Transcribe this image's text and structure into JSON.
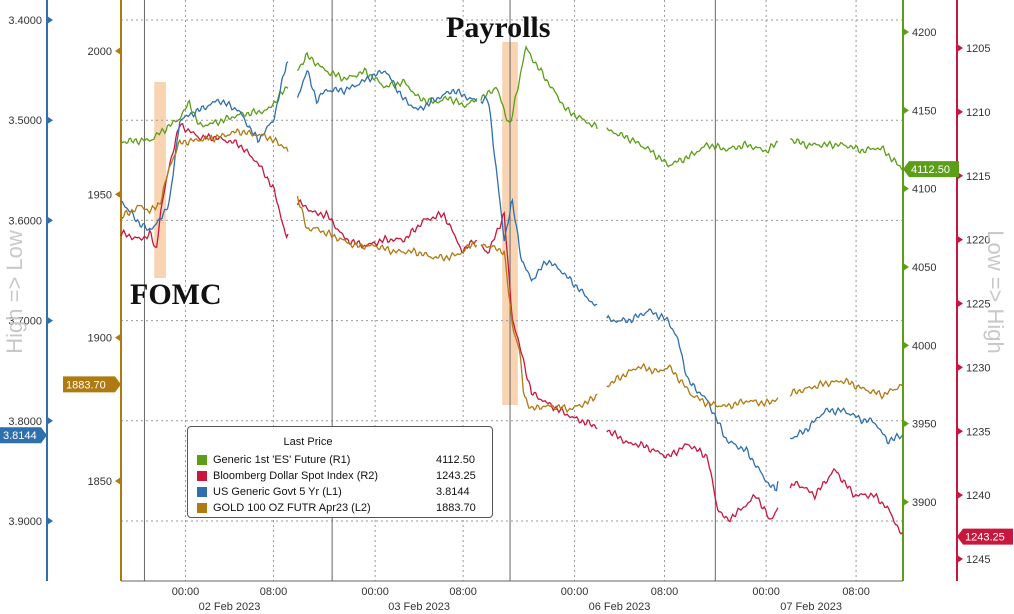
{
  "chart_data": {
    "type": "line",
    "annotations": [
      "FOMC",
      "Payrolls"
    ],
    "left_axis_title": "High => Low",
    "right_axis_title": "Low => High",
    "x_ticks": [
      {
        "day": "02 Feb 2023",
        "times": [
          "00:00",
          "08:00"
        ]
      },
      {
        "day": "03 Feb 2023",
        "times": [
          "00:00",
          "08:00"
        ]
      },
      {
        "day": "06 Feb 2023",
        "times": [
          "00:00",
          "08:00"
        ]
      },
      {
        "day": "07 Feb 2023",
        "times": [
          "00:00",
          "08:00"
        ]
      }
    ],
    "axes": {
      "L1": {
        "ticks": [
          "3.4000",
          "3.5000",
          "3.6000",
          "3.7000",
          "3.8000",
          "3.9000"
        ],
        "range": [
          3.4,
          3.9
        ],
        "inverted": true,
        "color": "#2f6fae"
      },
      "L2": {
        "ticks": [
          "2000",
          "1950",
          "1900",
          "1850"
        ],
        "range": [
          1850,
          2000
        ],
        "color": "#b07a12"
      },
      "R1": {
        "ticks": [
          "4200",
          "4150",
          "4100",
          "4050",
          "4000",
          "3950",
          "3900"
        ],
        "range": [
          3900,
          4200
        ],
        "color": "#5c9e17"
      },
      "R2": {
        "ticks": [
          "1205",
          "1210",
          "1215",
          "1220",
          "1225",
          "1230",
          "1235",
          "1240",
          "1245"
        ],
        "range": [
          1205,
          1245
        ],
        "inverted": true,
        "color": "#c8173d"
      }
    },
    "legend": {
      "header": "Last Price",
      "items": [
        {
          "label": "Generic 1st 'ES' Future  (R1)",
          "value": "4112.50",
          "color": "#5c9e17"
        },
        {
          "label": "Bloomberg Dollar Spot Index  (R2)",
          "value": "1243.25",
          "color": "#c8173d"
        },
        {
          "label": "US Generic Govt 5 Yr  (L1)",
          "value": "3.8144",
          "color": "#2f6fae"
        },
        {
          "label": "GOLD 100 OZ FUTR Apr23  (L2)",
          "value": "1883.70",
          "color": "#b07a12"
        }
      ]
    },
    "last_value_tags": {
      "es": {
        "text": "4112.50",
        "value": 4112.5,
        "axis": "R1",
        "color": "#5c9e17"
      },
      "dxy": {
        "text": "1243.25",
        "value": 1243.25,
        "axis": "R2",
        "color": "#c8173d"
      },
      "yield": {
        "text": "3.8144",
        "value": 3.8144,
        "axis": "L1",
        "color": "#2f6fae"
      },
      "gold": {
        "text": "1883.70",
        "value": 1883.7,
        "axis": "L2",
        "color": "#b07a12"
      }
    },
    "series": [
      {
        "key": "es",
        "name": "Generic 1st 'ES' Future  (R1)",
        "axis": "R1",
        "color": "#5c9e17",
        "points": [
          [
            0,
            4130
          ],
          [
            15,
            4131
          ],
          [
            30,
            4145
          ],
          [
            35,
            4155
          ],
          [
            40,
            4140
          ],
          [
            48,
            4142
          ],
          [
            60,
            4147
          ],
          [
            75,
            4150
          ],
          [
            85,
            4165
          ],
          [
            95,
            4185
          ],
          [
            105,
            4175
          ],
          [
            115,
            4170
          ],
          [
            125,
            4175
          ],
          [
            135,
            4165
          ],
          [
            145,
            4168
          ],
          [
            152,
            4158
          ],
          [
            160,
            4155
          ],
          [
            168,
            4158
          ],
          [
            175,
            4153
          ],
          [
            185,
            4158
          ],
          [
            192,
            4165
          ],
          [
            196,
            4150
          ],
          [
            199,
            4140
          ],
          [
            203,
            4165
          ],
          [
            207,
            4190
          ],
          [
            212,
            4180
          ],
          [
            220,
            4165
          ],
          [
            228,
            4150
          ],
          [
            242,
            4140
          ],
          [
            250,
            4137
          ],
          [
            260,
            4132
          ],
          [
            270,
            4125
          ],
          [
            280,
            4115
          ],
          [
            290,
            4120
          ],
          [
            300,
            4128
          ],
          [
            310,
            4125
          ],
          [
            320,
            4128
          ],
          [
            330,
            4124
          ],
          [
            340,
            4133
          ],
          [
            350,
            4128
          ],
          [
            360,
            4128
          ],
          [
            370,
            4128
          ],
          [
            380,
            4124
          ],
          [
            385,
            4126
          ],
          [
            390,
            4125
          ],
          [
            395,
            4118
          ],
          [
            400,
            4112.5
          ]
        ]
      },
      {
        "key": "dxy",
        "name": "Bloomberg Dollar Spot Index  (R2)",
        "axis": "R2",
        "color": "#c8173d",
        "points": [
          [
            0,
            1219.5
          ],
          [
            10,
            1220
          ],
          [
            15,
            1219.5
          ],
          [
            18,
            1221
          ],
          [
            20,
            1218
          ],
          [
            25,
            1214
          ],
          [
            30,
            1211
          ],
          [
            40,
            1212
          ],
          [
            48,
            1212
          ],
          [
            60,
            1212.5
          ],
          [
            70,
            1214
          ],
          [
            78,
            1216
          ],
          [
            85,
            1220
          ],
          [
            90,
            1217
          ],
          [
            100,
            1218
          ],
          [
            105,
            1218
          ],
          [
            115,
            1220
          ],
          [
            125,
            1220.5
          ],
          [
            135,
            1220
          ],
          [
            145,
            1220
          ],
          [
            155,
            1218.5
          ],
          [
            165,
            1218
          ],
          [
            175,
            1221
          ],
          [
            180,
            1220
          ],
          [
            188,
            1221
          ],
          [
            196,
            1218
          ],
          [
            200,
            1226
          ],
          [
            205,
            1229
          ],
          [
            210,
            1232
          ],
          [
            220,
            1233
          ],
          [
            232,
            1234
          ],
          [
            250,
            1235
          ],
          [
            260,
            1236
          ],
          [
            265,
            1236
          ],
          [
            280,
            1237
          ],
          [
            290,
            1236
          ],
          [
            300,
            1237
          ],
          [
            305,
            1241
          ],
          [
            310,
            1242
          ],
          [
            318,
            1241
          ],
          [
            325,
            1240
          ],
          [
            332,
            1242
          ],
          [
            340,
            1240
          ],
          [
            345,
            1239
          ],
          [
            355,
            1240
          ],
          [
            365,
            1238
          ],
          [
            375,
            1240
          ],
          [
            385,
            1240
          ],
          [
            392,
            1241
          ],
          [
            400,
            1243.25
          ]
        ]
      },
      {
        "key": "yield",
        "name": "US Generic Govt 5 Yr  (L1)",
        "axis": "L1",
        "color": "#2f6fae",
        "points": [
          [
            0,
            3.58
          ],
          [
            8,
            3.6
          ],
          [
            14,
            3.61
          ],
          [
            20,
            3.6
          ],
          [
            25,
            3.58
          ],
          [
            30,
            3.5
          ],
          [
            40,
            3.49
          ],
          [
            50,
            3.48
          ],
          [
            60,
            3.49
          ],
          [
            70,
            3.52
          ],
          [
            78,
            3.5
          ],
          [
            85,
            3.44
          ],
          [
            90,
            3.48
          ],
          [
            95,
            3.45
          ],
          [
            100,
            3.48
          ],
          [
            105,
            3.47
          ],
          [
            115,
            3.47
          ],
          [
            125,
            3.46
          ],
          [
            135,
            3.45
          ],
          [
            145,
            3.48
          ],
          [
            152,
            3.49
          ],
          [
            160,
            3.48
          ],
          [
            170,
            3.47
          ],
          [
            180,
            3.48
          ],
          [
            188,
            3.48
          ],
          [
            196,
            3.62
          ],
          [
            200,
            3.58
          ],
          [
            205,
            3.64
          ],
          [
            210,
            3.66
          ],
          [
            218,
            3.64
          ],
          [
            225,
            3.65
          ],
          [
            235,
            3.67
          ],
          [
            250,
            3.7
          ],
          [
            260,
            3.7
          ],
          [
            270,
            3.69
          ],
          [
            280,
            3.7
          ],
          [
            285,
            3.72
          ],
          [
            290,
            3.76
          ],
          [
            300,
            3.78
          ],
          [
            310,
            3.82
          ],
          [
            320,
            3.83
          ],
          [
            330,
            3.86
          ],
          [
            335,
            3.87
          ],
          [
            340,
            3.82
          ],
          [
            350,
            3.81
          ],
          [
            360,
            3.79
          ],
          [
            370,
            3.79
          ],
          [
            380,
            3.8
          ],
          [
            385,
            3.8
          ],
          [
            392,
            3.82
          ],
          [
            400,
            3.8144
          ]
        ]
      },
      {
        "key": "gold",
        "name": "GOLD 100 OZ FUTR Apr23  (L2)",
        "axis": "L2",
        "color": "#b07a12",
        "points": [
          [
            0,
            1942
          ],
          [
            10,
            1946
          ],
          [
            15,
            1944
          ],
          [
            20,
            1947
          ],
          [
            25,
            1960
          ],
          [
            30,
            1968
          ],
          [
            40,
            1969
          ],
          [
            50,
            1970
          ],
          [
            60,
            1972
          ],
          [
            75,
            1970
          ],
          [
            85,
            1966
          ],
          [
            90,
            1950
          ],
          [
            95,
            1938
          ],
          [
            100,
            1938
          ],
          [
            110,
            1935
          ],
          [
            120,
            1932
          ],
          [
            130,
            1932
          ],
          [
            140,
            1930
          ],
          [
            150,
            1930
          ],
          [
            160,
            1928
          ],
          [
            168,
            1928
          ],
          [
            175,
            1930
          ],
          [
            180,
            1933
          ],
          [
            188,
            1932
          ],
          [
            196,
            1930
          ],
          [
            200,
            1905
          ],
          [
            204,
            1895
          ],
          [
            206,
            1880
          ],
          [
            210,
            1875
          ],
          [
            215,
            1876
          ],
          [
            222,
            1876
          ],
          [
            230,
            1875
          ],
          [
            240,
            1878
          ],
          [
            250,
            1884
          ],
          [
            255,
            1886
          ],
          [
            265,
            1890
          ],
          [
            275,
            1888
          ],
          [
            280,
            1890
          ],
          [
            285,
            1886
          ],
          [
            292,
            1880
          ],
          [
            300,
            1877
          ],
          [
            310,
            1876
          ],
          [
            320,
            1878
          ],
          [
            330,
            1877
          ],
          [
            340,
            1880
          ],
          [
            350,
            1882
          ],
          [
            360,
            1884
          ],
          [
            370,
            1885
          ],
          [
            380,
            1882
          ],
          [
            390,
            1880
          ],
          [
            400,
            1883.7
          ]
        ]
      }
    ],
    "gaps": [
      [
        86,
        90
      ],
      [
        182,
        184
      ],
      [
        244,
        248
      ],
      [
        336,
        342
      ]
    ],
    "highlights": [
      [
        17,
        23
      ],
      [
        195,
        203
      ]
    ],
    "ylabel_left_L1": "High => Low",
    "ylabel_right": "Low => High"
  }
}
